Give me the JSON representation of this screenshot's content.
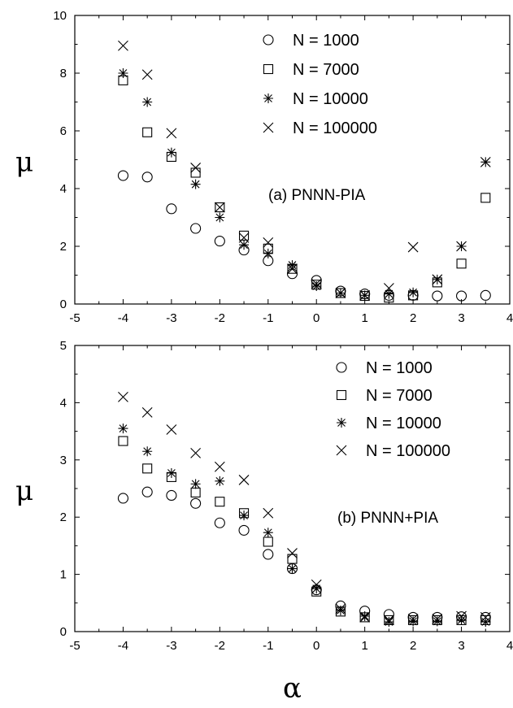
{
  "chart_data": [
    {
      "type": "scatter",
      "panel": "a",
      "annotation": "(a) PNNN-PIA",
      "ylabel": "μ",
      "xlabel": "",
      "xlim": [
        -5,
        4
      ],
      "ylim": [
        0,
        10
      ],
      "xticks": [
        -5,
        -4,
        -3,
        -2,
        -1,
        0,
        1,
        2,
        3,
        4
      ],
      "yticks": [
        0,
        2,
        4,
        6,
        8,
        10
      ],
      "grid": false,
      "legend_position": "top-right",
      "x": [
        -4,
        -3.5,
        -3,
        -2.5,
        -2,
        -1.5,
        -1,
        -0.5,
        0,
        0.5,
        1,
        1.5,
        2,
        2.5,
        3,
        3.5
      ],
      "series": [
        {
          "name": "N = 1000",
          "marker": "circle",
          "values": [
            4.45,
            4.4,
            3.3,
            2.62,
            2.18,
            1.87,
            1.5,
            1.05,
            0.82,
            0.45,
            0.35,
            0.3,
            0.3,
            0.28,
            0.28,
            0.3
          ]
        },
        {
          "name": "N = 7000",
          "marker": "square",
          "values": [
            7.75,
            5.95,
            5.1,
            4.55,
            3.35,
            2.37,
            1.92,
            1.22,
            0.67,
            0.38,
            0.28,
            0.22,
            0.3,
            0.75,
            1.4,
            3.68
          ]
        },
        {
          "name": "N = 10000",
          "marker": "asterisk",
          "values": [
            8.0,
            7.0,
            5.25,
            4.15,
            3.0,
            2.05,
            1.75,
            1.35,
            0.62,
            0.38,
            0.3,
            0.35,
            0.4,
            0.85,
            2.0,
            4.92
          ]
        },
        {
          "name": "N = 100000",
          "marker": "x",
          "values": [
            8.95,
            7.95,
            5.92,
            4.72,
            3.35,
            2.3,
            2.13,
            1.22,
            0.7,
            0.38,
            0.3,
            0.55,
            1.97,
            0.85,
            2.0,
            4.92
          ]
        }
      ]
    },
    {
      "type": "scatter",
      "panel": "b",
      "annotation": "(b) PNNN+PIA",
      "ylabel": "μ",
      "xlabel": "α",
      "xlim": [
        -5,
        4
      ],
      "ylim": [
        0,
        5
      ],
      "xticks": [
        -5,
        -4,
        -3,
        -2,
        -1,
        0,
        1,
        2,
        3,
        4
      ],
      "yticks": [
        0,
        1,
        2,
        3,
        4,
        5
      ],
      "grid": false,
      "legend_position": "top-right",
      "x": [
        -4,
        -3.5,
        -3,
        -2.5,
        -2,
        -1.5,
        -1,
        -0.5,
        0,
        0.5,
        1,
        1.5,
        2,
        2.5,
        3,
        3.5
      ],
      "series": [
        {
          "name": "N = 1000",
          "marker": "circle",
          "values": [
            2.33,
            2.44,
            2.38,
            2.24,
            1.9,
            1.77,
            1.35,
            1.1,
            0.73,
            0.45,
            0.36,
            0.3,
            0.25,
            0.25,
            0.26,
            0.25
          ]
        },
        {
          "name": "N = 7000",
          "marker": "square",
          "values": [
            3.33,
            2.85,
            2.7,
            2.43,
            2.27,
            2.07,
            1.57,
            1.27,
            0.7,
            0.35,
            0.25,
            0.2,
            0.2,
            0.2,
            0.2,
            0.2
          ]
        },
        {
          "name": "N = 10000",
          "marker": "asterisk",
          "values": [
            3.55,
            3.15,
            2.77,
            2.58,
            2.63,
            2.03,
            1.73,
            1.1,
            0.75,
            0.37,
            0.27,
            0.17,
            0.18,
            0.18,
            0.2,
            0.17
          ]
        },
        {
          "name": "N = 100000",
          "marker": "x",
          "values": [
            4.1,
            3.83,
            3.53,
            3.12,
            2.88,
            2.65,
            2.07,
            1.37,
            0.82,
            0.4,
            0.25,
            0.2,
            0.22,
            0.22,
            0.27,
            0.25
          ]
        }
      ]
    }
  ]
}
